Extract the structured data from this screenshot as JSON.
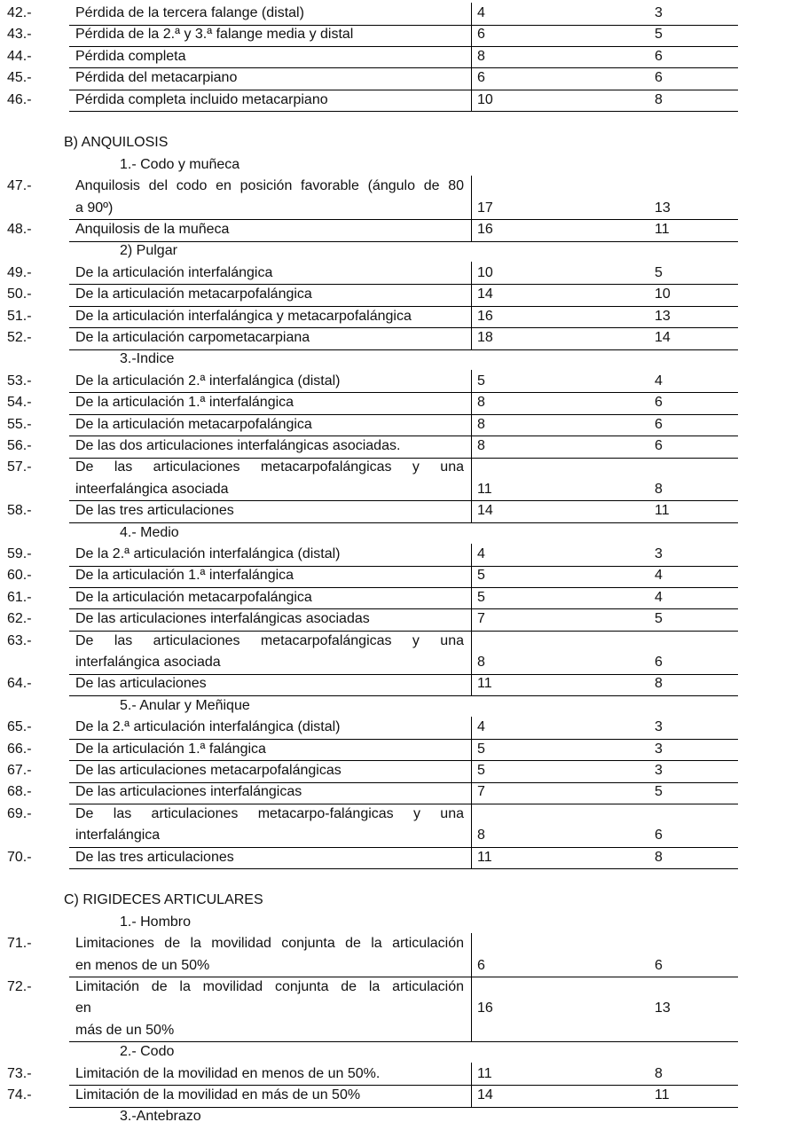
{
  "items": [
    {
      "kind": "row",
      "number": "42.-",
      "description": [
        "Pérdida de la tercera falange (distal)"
      ],
      "col1": 4,
      "col2": 3
    },
    {
      "kind": "row",
      "number": "43.-",
      "description": [
        "Pérdida de la 2.ª y 3.ª falange media y  distal"
      ],
      "col1": 6,
      "col2": 5
    },
    {
      "kind": "row",
      "number": "44.-",
      "description": [
        "Pérdida completa"
      ],
      "col1": 8,
      "col2": 6
    },
    {
      "kind": "row",
      "number": "45.-",
      "description": [
        "Pérdida del metacarpiano"
      ],
      "col1": 6,
      "col2": 6
    },
    {
      "kind": "row",
      "number": "46.-",
      "description": [
        "Pérdida completa incluido metacarpiano"
      ],
      "col1": 10,
      "col2": 8
    },
    {
      "kind": "section",
      "text": "B) ANQUILOSIS"
    },
    {
      "kind": "subsection",
      "text": "1.- Codo y muñeca"
    },
    {
      "kind": "row",
      "number": "47.-",
      "description": [
        "Anquilosis del codo en posición favorable (ángulo de 80",
        "a 90º)"
      ],
      "col1": 17,
      "col2": 13
    },
    {
      "kind": "row",
      "number": "48.-",
      "description": [
        "Anquilosis de la muñeca"
      ],
      "col1": 16,
      "col2": 11
    },
    {
      "kind": "subsection",
      "text": "2) Pulgar"
    },
    {
      "kind": "row",
      "number": "49.-",
      "description": [
        "De la articulación interfalángica"
      ],
      "col1": 10,
      "col2": 5
    },
    {
      "kind": "row",
      "number": "50.-",
      "description": [
        "De la articulación metacarpofalángica"
      ],
      "col1": 14,
      "col2": 10
    },
    {
      "kind": "row",
      "number": "51.-",
      "description": [
        "De la articulación interfalángica y metacarpofalángica"
      ],
      "col1": 16,
      "col2": 13
    },
    {
      "kind": "row",
      "number": "52.-",
      "description": [
        "De la articulación carpometacarpiana"
      ],
      "col1": 18,
      "col2": 14
    },
    {
      "kind": "subsection",
      "text": "3.-Indice"
    },
    {
      "kind": "row",
      "number": "53.-",
      "description": [
        "De la articulación 2.ª interfalángica (distal)"
      ],
      "col1": 5,
      "col2": 4
    },
    {
      "kind": "row",
      "number": "54.-",
      "description": [
        "De la articulación 1.ª interfalángica"
      ],
      "col1": 8,
      "col2": 6
    },
    {
      "kind": "row",
      "number": "55.-",
      "description": [
        "De la articulación metacarpofalángica"
      ],
      "col1": 8,
      "col2": 6
    },
    {
      "kind": "row",
      "number": "56.-",
      "description": [
        "De las dos articulaciones interfalángicas asociadas."
      ],
      "col1": 8,
      "col2": 6
    },
    {
      "kind": "row",
      "number": "57.-",
      "description": [
        "De las articulaciones metacarpofalángicas y una",
        "inteerfalángica asociada"
      ],
      "col1": 11,
      "col2": 8
    },
    {
      "kind": "row",
      "number": "58.-",
      "description": [
        "De las tres articulaciones"
      ],
      "col1": 14,
      "col2": 11
    },
    {
      "kind": "subsection",
      "text": "4.- Medio"
    },
    {
      "kind": "row",
      "number": "59.-",
      "description": [
        "De la 2.ª articulación interfalángica (distal)"
      ],
      "col1": 4,
      "col2": 3
    },
    {
      "kind": "row",
      "number": "60.-",
      "description": [
        "De la articulación 1.ª interfalángica"
      ],
      "col1": 5,
      "col2": 4
    },
    {
      "kind": "row",
      "number": "61.-",
      "description": [
        "De la articulación metacarpofalángica"
      ],
      "col1": 5,
      "col2": 4
    },
    {
      "kind": "row",
      "number": "62.-",
      "description": [
        "De las articulaciones interfalángicas asociadas"
      ],
      "col1": 7,
      "col2": 5
    },
    {
      "kind": "row",
      "number": "63.-",
      "description": [
        "De las articulaciones metacarpofalángicas y una",
        "interfalángica asociada"
      ],
      "col1": 8,
      "col2": 6
    },
    {
      "kind": "row",
      "number": "64.-",
      "description": [
        "De las articulaciones"
      ],
      "col1": 11,
      "col2": 8
    },
    {
      "kind": "subsection",
      "text": "5.- Anular y Meñique"
    },
    {
      "kind": "row",
      "number": "65.-",
      "description": [
        "De la 2.ª articulación interfalángica (distal)"
      ],
      "col1": 4,
      "col2": 3
    },
    {
      "kind": "row",
      "number": "66.-",
      "description": [
        "De la articulación 1.ª falángica"
      ],
      "col1": 5,
      "col2": 3
    },
    {
      "kind": "row",
      "number": "67.-",
      "description": [
        "De las articulaciones metacarpofalángicas"
      ],
      "col1": 5,
      "col2": 3
    },
    {
      "kind": "row",
      "number": "68.-",
      "description": [
        "De las articulaciones interfalángicas"
      ],
      "col1": 7,
      "col2": 5
    },
    {
      "kind": "row",
      "number": "69.-",
      "description": [
        "De las articulaciones metacarpo-falángicas y una",
        "interfalángica"
      ],
      "col1": 8,
      "col2": 6
    },
    {
      "kind": "row",
      "number": "70.-",
      "description": [
        "De las tres articulaciones"
      ],
      "col1": 11,
      "col2": 8
    },
    {
      "kind": "section",
      "text": "C) RIGIDECES ARTICULARES"
    },
    {
      "kind": "subsection",
      "text": "1.- Hombro"
    },
    {
      "kind": "row",
      "number": "71.-",
      "description": [
        "Limitaciones de la movilidad conjunta de la articulación",
        "en menos de un 50%"
      ],
      "col1": 6,
      "col2": 6
    },
    {
      "kind": "row",
      "number": "72.-",
      "description": [
        "Limitación de la movilidad conjunta de la articulación",
        "en",
        "más de un 50%"
      ],
      "col1": 16,
      "col2": 13
    },
    {
      "kind": "subsection",
      "text": "2.- Codo"
    },
    {
      "kind": "row",
      "number": "73.-",
      "description": [
        "Limitación de la movilidad en menos de un 50%."
      ],
      "col1": 11,
      "col2": 8
    },
    {
      "kind": "row",
      "number": "74.-",
      "description": [
        "Limitación de la movilidad en más de un 50%"
      ],
      "col1": 14,
      "col2": 11
    },
    {
      "kind": "subsection",
      "text": "3.-Antebrazo"
    }
  ]
}
